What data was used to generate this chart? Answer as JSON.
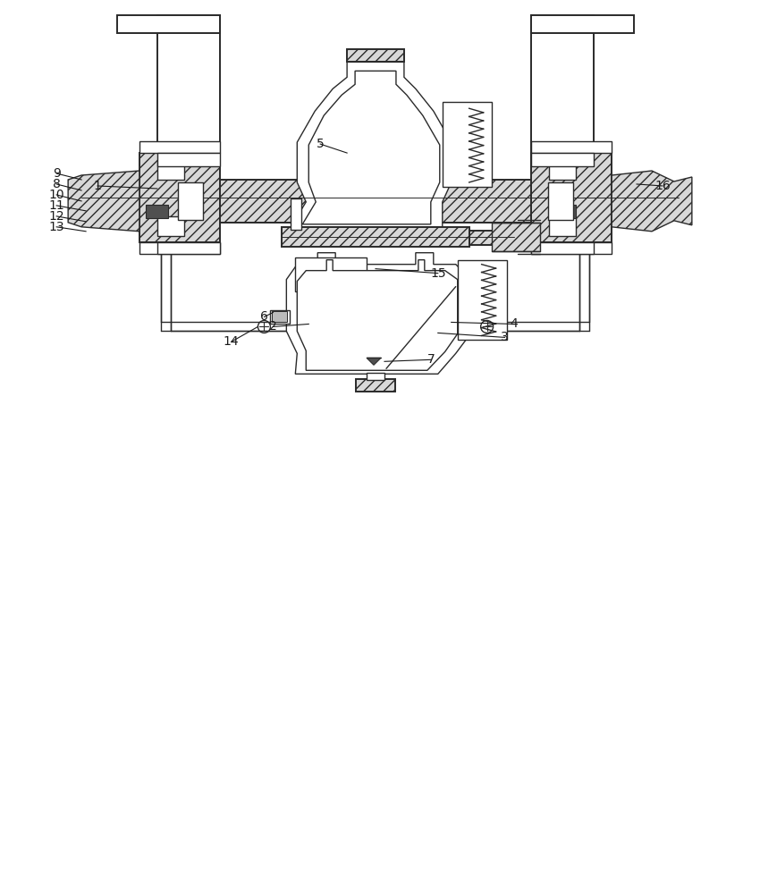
{
  "bg_color": "#ffffff",
  "lc": "#2a2a2a",
  "hatch_fc": "#d8d8d8",
  "dark_fc": "#505050",
  "fig_width": 8.5,
  "fig_height": 10.0,
  "ann_color": "#1a1a1a",
  "font_size": 10
}
